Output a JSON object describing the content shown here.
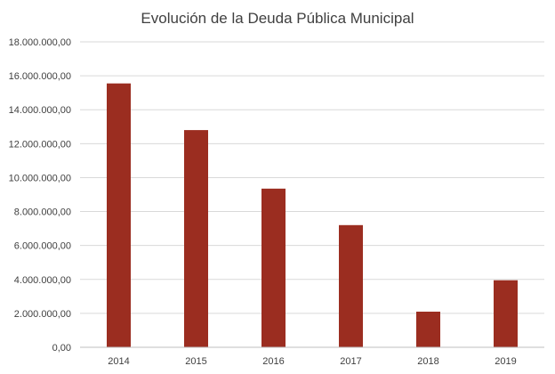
{
  "chart_data": {
    "type": "bar",
    "title": "Evolución de la Deuda Pública Municipal",
    "xlabel": "",
    "ylabel": "",
    "categories": [
      "2014",
      "2015",
      "2016",
      "2017",
      "2018",
      "2019"
    ],
    "values": [
      15550000,
      12800000,
      9350000,
      7200000,
      2100000,
      3950000
    ],
    "ylim": [
      0,
      18000000
    ],
    "yticks": [
      0,
      2000000,
      4000000,
      6000000,
      8000000,
      10000000,
      12000000,
      14000000,
      16000000,
      18000000
    ],
    "ytick_labels": [
      "0,00",
      "2.000.000,00",
      "4.000.000,00",
      "6.000.000,00",
      "8.000.000,00",
      "10.000.000,00",
      "12.000.000,00",
      "14.000.000,00",
      "16.000.000,00",
      "18.000.000,00"
    ],
    "bar_color": "#9b2d20",
    "grid": true,
    "legend": "none"
  }
}
